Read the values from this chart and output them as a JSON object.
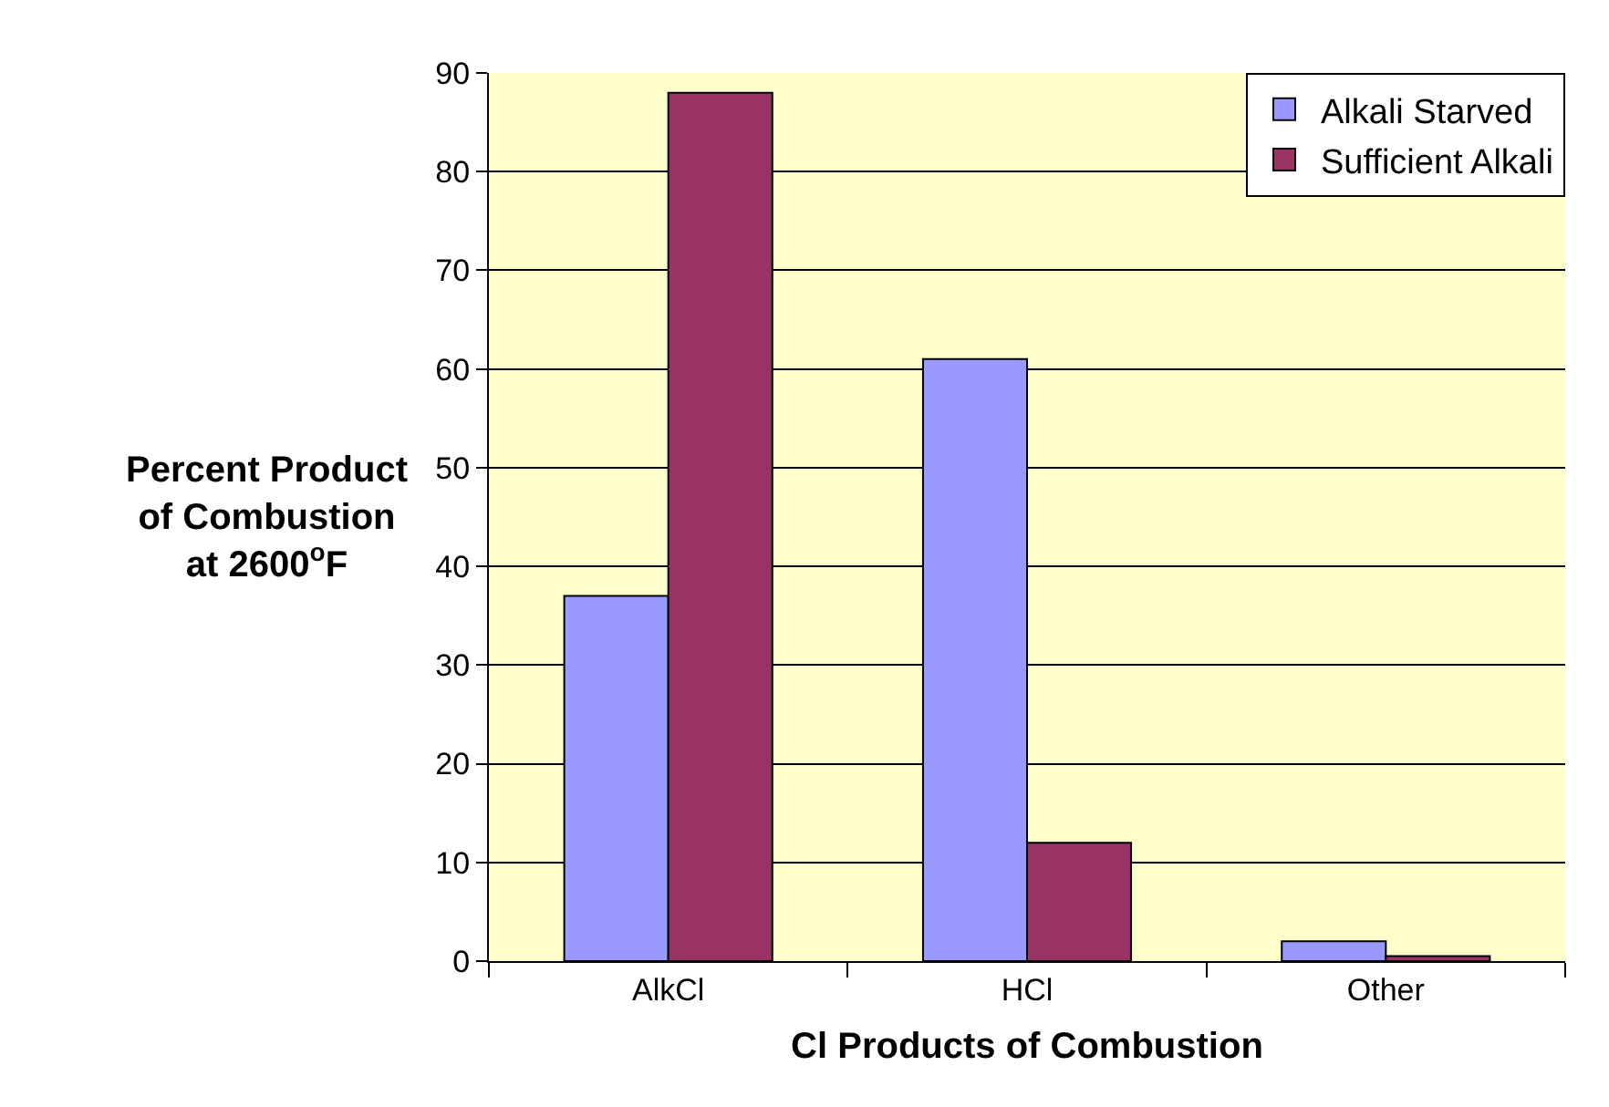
{
  "chart_data": {
    "type": "bar",
    "xlabel": "Cl Products of Combustion",
    "ylabel": "Percent Product\nof Combustion\nat 2600$^{o}$F",
    "categories": [
      "AlkCl",
      "HCl",
      "Other"
    ],
    "series": [
      {
        "name": "Alkali Starved",
        "color": "#9999ff",
        "values": [
          37,
          61,
          2
        ]
      },
      {
        "name": "Sufficient Alkali",
        "color": "#993366",
        "values": [
          88,
          12,
          0.5
        ]
      }
    ],
    "ylim": [
      0,
      90
    ],
    "yticks": [
      0,
      10,
      20,
      30,
      40,
      50,
      60,
      70,
      80,
      90
    ],
    "grid": "y",
    "legend": "top right"
  }
}
